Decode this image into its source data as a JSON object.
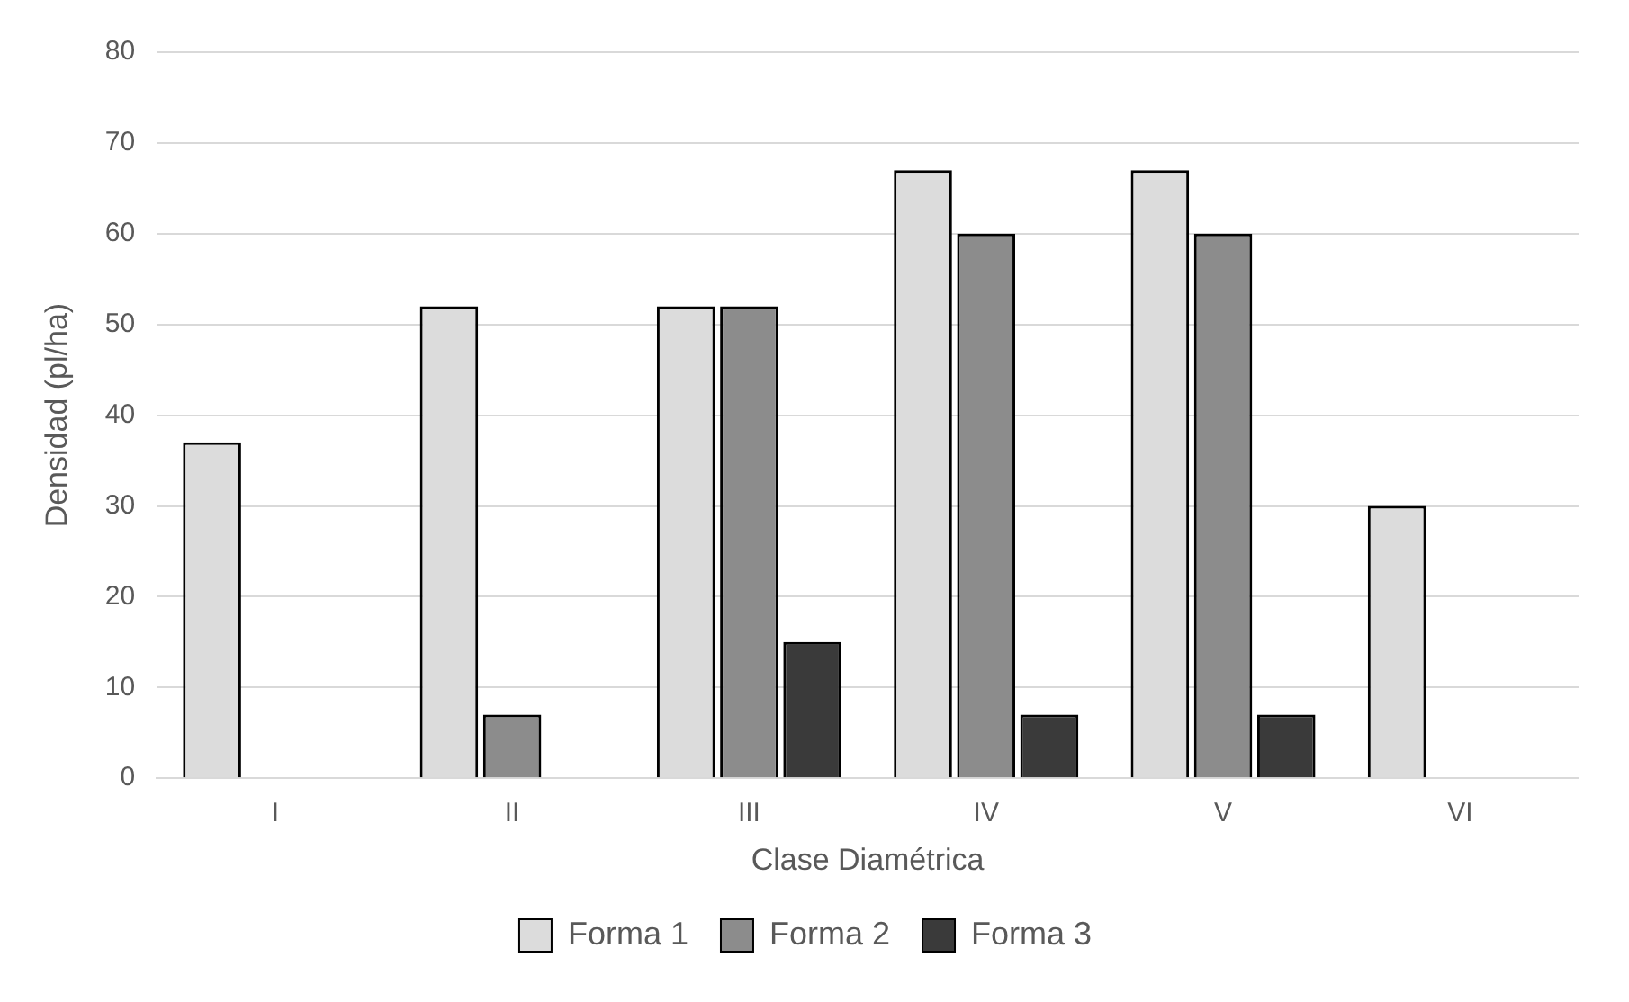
{
  "chart_data": {
    "type": "bar",
    "xlabel": "Clase Diamétrica",
    "ylabel": "Densidad (pl/ha)",
    "categories": [
      "I",
      "II",
      "III",
      "IV",
      "V",
      "VI"
    ],
    "series": [
      {
        "name": "Forma 1",
        "color": "#dcdcdc",
        "values": [
          37,
          52,
          52,
          67,
          67,
          30
        ]
      },
      {
        "name": "Forma 2",
        "color": "#8c8c8c",
        "values": [
          null,
          7,
          52,
          60,
          60,
          null
        ]
      },
      {
        "name": "Forma 3",
        "color": "#3a3a3a",
        "values": [
          null,
          null,
          15,
          7,
          7,
          null
        ]
      }
    ],
    "ylim": [
      0,
      80
    ],
    "yticks": [
      0,
      10,
      20,
      30,
      40,
      50,
      60,
      70,
      80
    ],
    "grid": "y",
    "legend": "bottom"
  }
}
